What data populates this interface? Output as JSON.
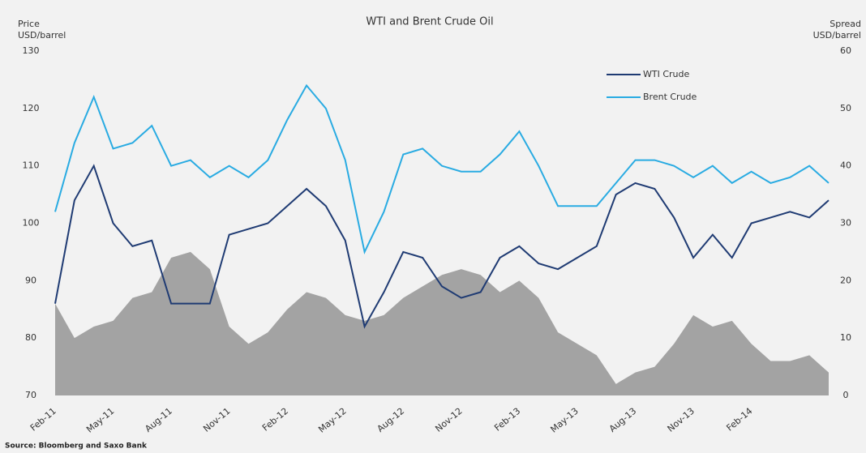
{
  "chart_data": {
    "type": "line",
    "title": "WTI and Brent Crude Oil",
    "y_label": [
      "Price",
      "USD/barrel"
    ],
    "y2_label": [
      "Spread",
      "USD/barrel"
    ],
    "source": "Source: Bloomberg and Saxo Bank",
    "categories": [
      "Feb-11",
      null,
      null,
      "May-11",
      null,
      null,
      "Aug-11",
      null,
      null,
      "Nov-11",
      null,
      null,
      "Feb-12",
      null,
      null,
      "May-12",
      null,
      null,
      "Aug-12",
      null,
      null,
      "Nov-12",
      null,
      null,
      "Feb-13",
      null,
      null,
      "May-13",
      null,
      null,
      "Aug-13",
      null,
      null,
      "Nov-13",
      null,
      null,
      "Feb-14",
      null,
      null,
      null,
      null
    ],
    "series": [
      {
        "type": "area",
        "axis": "y2",
        "color": "#a3a3a3",
        "values": [
          16,
          10,
          12,
          13,
          17,
          18,
          24,
          25,
          22,
          12,
          9,
          11,
          15,
          18,
          17,
          14,
          13,
          14,
          17,
          19,
          21,
          22,
          21,
          18,
          20,
          17,
          11,
          9,
          7,
          2,
          4,
          5,
          9,
          14,
          12,
          13,
          9,
          6,
          6,
          7,
          4
        ]
      },
      {
        "name": "WTI Crude",
        "color": "#1f3b73",
        "values": [
          86,
          104,
          110,
          100,
          96,
          97,
          86,
          86,
          86,
          98,
          99,
          100,
          103,
          106,
          103,
          97,
          82,
          88,
          95,
          94,
          89,
          87,
          88,
          94,
          96,
          93,
          92,
          94,
          96,
          105,
          107,
          106,
          101,
          94,
          98,
          94,
          100,
          101,
          102,
          101,
          104
        ]
      },
      {
        "name": "Brent Crude",
        "color": "#29abe2",
        "values": [
          102,
          114,
          122,
          113,
          114,
          117,
          110,
          111,
          108,
          110,
          108,
          111,
          118,
          124,
          120,
          111,
          95,
          102,
          112,
          113,
          110,
          109,
          109,
          112,
          116,
          110,
          103,
          103,
          103,
          107,
          111,
          111,
          110,
          108,
          110,
          107,
          109,
          107,
          108,
          110,
          107
        ]
      }
    ],
    "ylim": [
      70,
      130
    ],
    "yticks": [
      70,
      80,
      90,
      100,
      110,
      120,
      130
    ],
    "y2lim": [
      0,
      60
    ],
    "y2ticks": [
      0,
      10,
      20,
      30,
      40,
      50,
      60
    ],
    "grid": false
  }
}
